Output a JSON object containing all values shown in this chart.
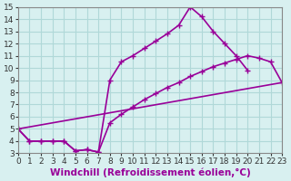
{
  "background_color": "#d8f0f0",
  "grid_color": "#b0d8d8",
  "line_color": "#990099",
  "marker": "+",
  "marker_size": 5,
  "line_width": 1.2,
  "xlabel": "Windchill (Refroidissement éolien,°C)",
  "xlabel_fontsize": 7.5,
  "xlim": [
    0,
    23
  ],
  "ylim": [
    3,
    15
  ],
  "xticks": [
    0,
    1,
    2,
    3,
    4,
    5,
    6,
    7,
    8,
    9,
    10,
    11,
    12,
    13,
    14,
    15,
    16,
    17,
    18,
    19,
    20,
    21,
    22,
    23
  ],
  "yticks": [
    3,
    4,
    5,
    6,
    7,
    8,
    9,
    10,
    11,
    12,
    13,
    14,
    15
  ],
  "tick_fontsize": 6.5,
  "s1x": [
    0,
    1,
    2,
    3,
    4,
    5,
    6,
    7,
    8,
    9,
    10,
    11,
    12,
    13,
    14,
    15,
    16,
    17,
    18,
    19,
    20
  ],
  "s1y": [
    5,
    4,
    4,
    4,
    4,
    3.2,
    3.3,
    3.1,
    9.0,
    10.5,
    11.0,
    11.6,
    12.2,
    12.8,
    13.5,
    15.0,
    14.2,
    13.0,
    12.0,
    11.0,
    9.8
  ],
  "s2x": [
    0,
    1,
    2,
    3,
    4,
    5,
    6,
    7,
    8,
    9,
    10,
    11,
    12,
    13,
    14,
    15,
    16,
    17,
    18,
    19,
    20,
    21,
    22,
    23
  ],
  "s2y": [
    5,
    4,
    4,
    4,
    4,
    3.2,
    3.3,
    3.1,
    5.5,
    6.2,
    6.8,
    7.4,
    7.9,
    8.4,
    8.8,
    9.3,
    9.7,
    10.1,
    10.4,
    10.7,
    11.0,
    10.8,
    10.5,
    8.8
  ],
  "s3x": [
    0,
    23
  ],
  "s3y": [
    5,
    8.8
  ]
}
